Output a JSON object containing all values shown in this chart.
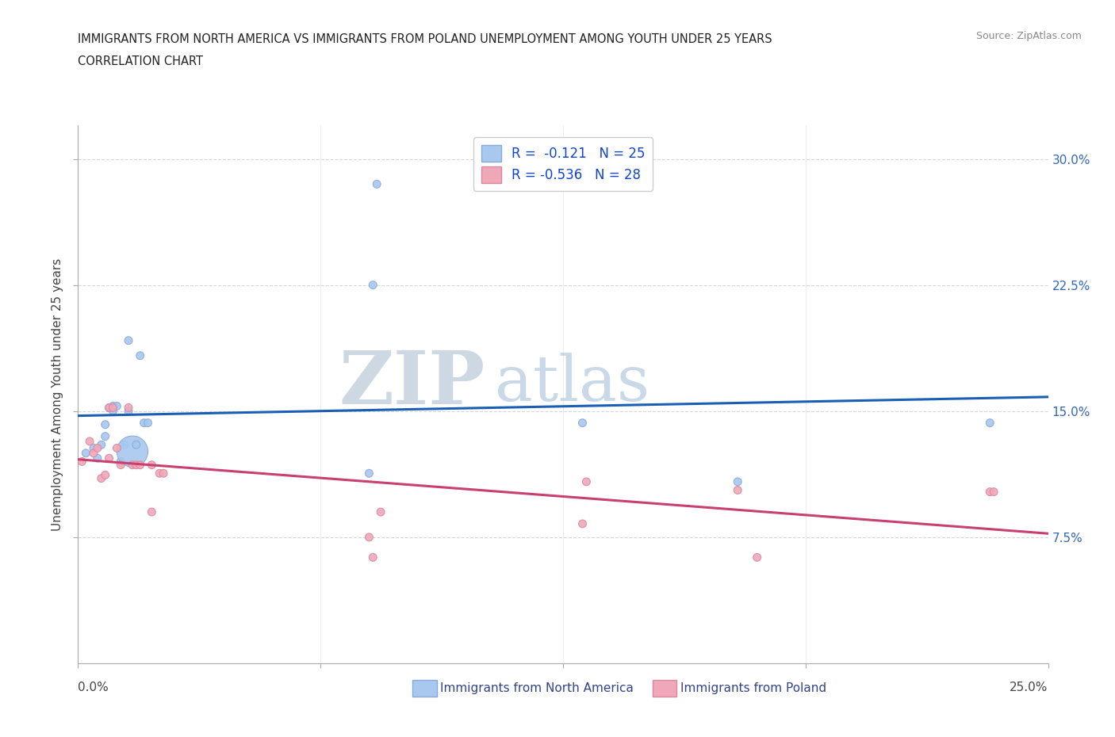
{
  "title_line1": "IMMIGRANTS FROM NORTH AMERICA VS IMMIGRANTS FROM POLAND UNEMPLOYMENT AMONG YOUTH UNDER 25 YEARS",
  "title_line2": "CORRELATION CHART",
  "source_text": "Source: ZipAtlas.com",
  "ylabel": "Unemployment Among Youth under 25 years",
  "xlim": [
    0.0,
    0.25
  ],
  "ylim": [
    0.0,
    0.32
  ],
  "yticks": [
    0.075,
    0.15,
    0.225,
    0.3
  ],
  "ytick_labels": [
    "7.5%",
    "15.0%",
    "22.5%",
    "30.0%"
  ],
  "xticks": [
    0.0,
    0.0625,
    0.125,
    0.1875,
    0.25
  ],
  "north_america_R": -0.121,
  "north_america_N": 25,
  "poland_R": -0.536,
  "poland_N": 28,
  "north_america_color": "#a8c8f0",
  "poland_color": "#f0a8b8",
  "trend_blue_color": "#1a5fb4",
  "trend_pink_color": "#c84070",
  "background_color": "#ffffff",
  "grid_color": "#cccccc",
  "north_america_x": [
    0.002,
    0.004,
    0.005,
    0.006,
    0.007,
    0.007,
    0.008,
    0.009,
    0.009,
    0.01,
    0.011,
    0.012,
    0.013,
    0.013,
    0.014,
    0.015,
    0.016,
    0.017,
    0.018,
    0.075,
    0.076,
    0.077,
    0.13,
    0.17,
    0.235
  ],
  "north_america_y": [
    0.125,
    0.128,
    0.122,
    0.13,
    0.142,
    0.135,
    0.152,
    0.153,
    0.15,
    0.153,
    0.12,
    0.13,
    0.192,
    0.15,
    0.126,
    0.13,
    0.183,
    0.143,
    0.143,
    0.113,
    0.225,
    0.285,
    0.143,
    0.108,
    0.143
  ],
  "north_america_sizes": [
    50,
    50,
    50,
    50,
    50,
    50,
    50,
    50,
    50,
    50,
    50,
    50,
    50,
    50,
    800,
    50,
    50,
    50,
    50,
    50,
    50,
    50,
    50,
    50,
    50
  ],
  "poland_x": [
    0.001,
    0.003,
    0.004,
    0.005,
    0.006,
    0.007,
    0.008,
    0.008,
    0.009,
    0.01,
    0.011,
    0.013,
    0.014,
    0.015,
    0.016,
    0.019,
    0.019,
    0.021,
    0.022,
    0.075,
    0.076,
    0.078,
    0.13,
    0.131,
    0.17,
    0.175,
    0.235,
    0.236
  ],
  "poland_y": [
    0.12,
    0.132,
    0.125,
    0.128,
    0.11,
    0.112,
    0.122,
    0.152,
    0.152,
    0.128,
    0.118,
    0.152,
    0.118,
    0.118,
    0.118,
    0.118,
    0.09,
    0.113,
    0.113,
    0.075,
    0.063,
    0.09,
    0.083,
    0.108,
    0.103,
    0.063,
    0.102,
    0.102
  ],
  "poland_sizes": [
    50,
    50,
    50,
    50,
    50,
    50,
    50,
    50,
    50,
    50,
    50,
    50,
    50,
    50,
    50,
    50,
    50,
    50,
    50,
    50,
    50,
    50,
    50,
    50,
    50,
    50,
    50,
    50
  ]
}
